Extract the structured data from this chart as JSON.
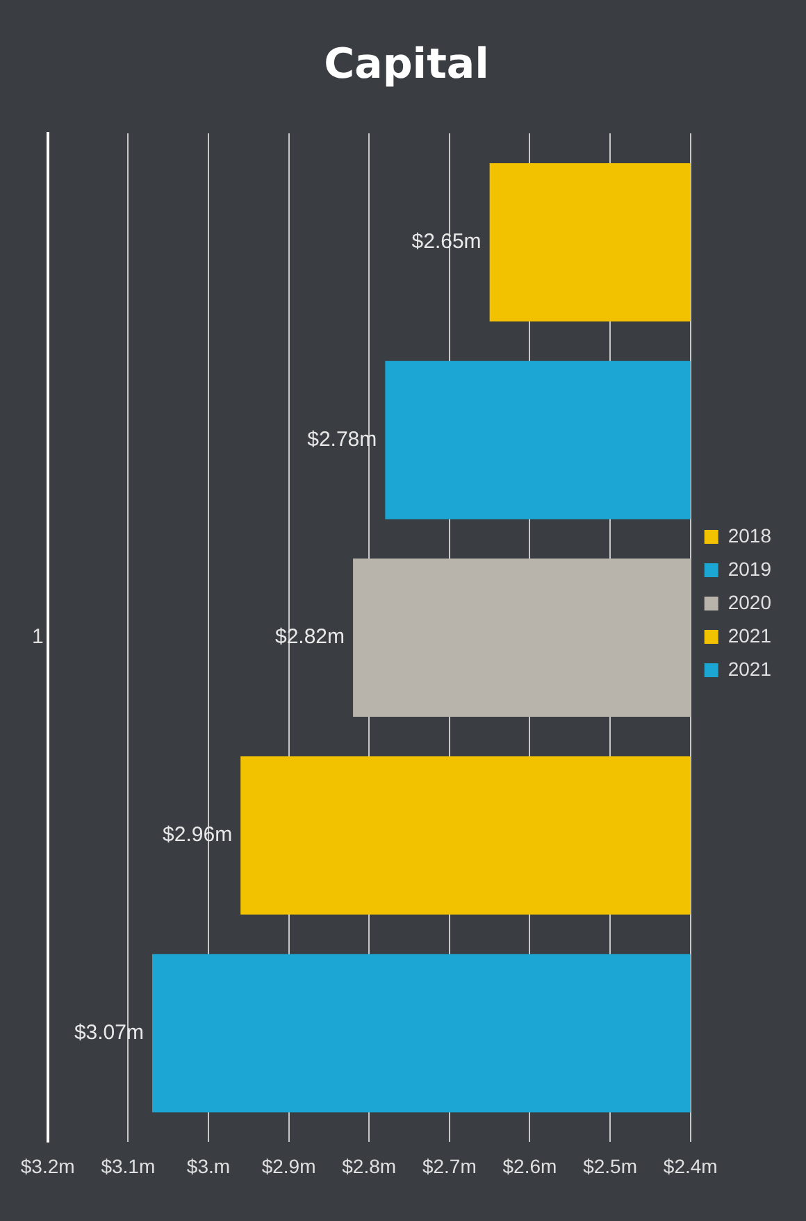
{
  "chart_data": {
    "type": "bar",
    "orientation": "horizontal",
    "title": "Capital",
    "categories": [
      "1"
    ],
    "series": [
      {
        "name": "2018",
        "color": "#f2c200",
        "values": [
          2.65
        ],
        "value_labels": [
          "$2.65m"
        ]
      },
      {
        "name": "2019",
        "color": "#1ba6d3",
        "values": [
          2.78
        ],
        "value_labels": [
          "$2.78m"
        ]
      },
      {
        "name": "2020",
        "color": "#b8b4ac",
        "values": [
          2.82
        ],
        "value_labels": [
          "$2.82m"
        ]
      },
      {
        "name": "2021",
        "color": "#f2c200",
        "values": [
          2.96
        ],
        "value_labels": [
          "$2.96m"
        ]
      },
      {
        "name": "2021",
        "color": "#1ba6d3",
        "values": [
          3.07
        ],
        "value_labels": [
          "$3.07m"
        ]
      }
    ],
    "xlim": [
      3.2,
      2.4
    ],
    "xticks": [
      {
        "value": 3.2,
        "label": "$3.2m"
      },
      {
        "value": 3.1,
        "label": "$3.1m"
      },
      {
        "value": 3.0,
        "label": "$3.m"
      },
      {
        "value": 2.9,
        "label": "$2.9m"
      },
      {
        "value": 2.8,
        "label": "$2.8m"
      },
      {
        "value": 2.7,
        "label": "$2.7m"
      },
      {
        "value": 2.6,
        "label": "$2.6m"
      },
      {
        "value": 2.5,
        "label": "$2.5m"
      },
      {
        "value": 2.4,
        "label": "$2.4m"
      }
    ],
    "grid": "x",
    "legend": "right"
  }
}
